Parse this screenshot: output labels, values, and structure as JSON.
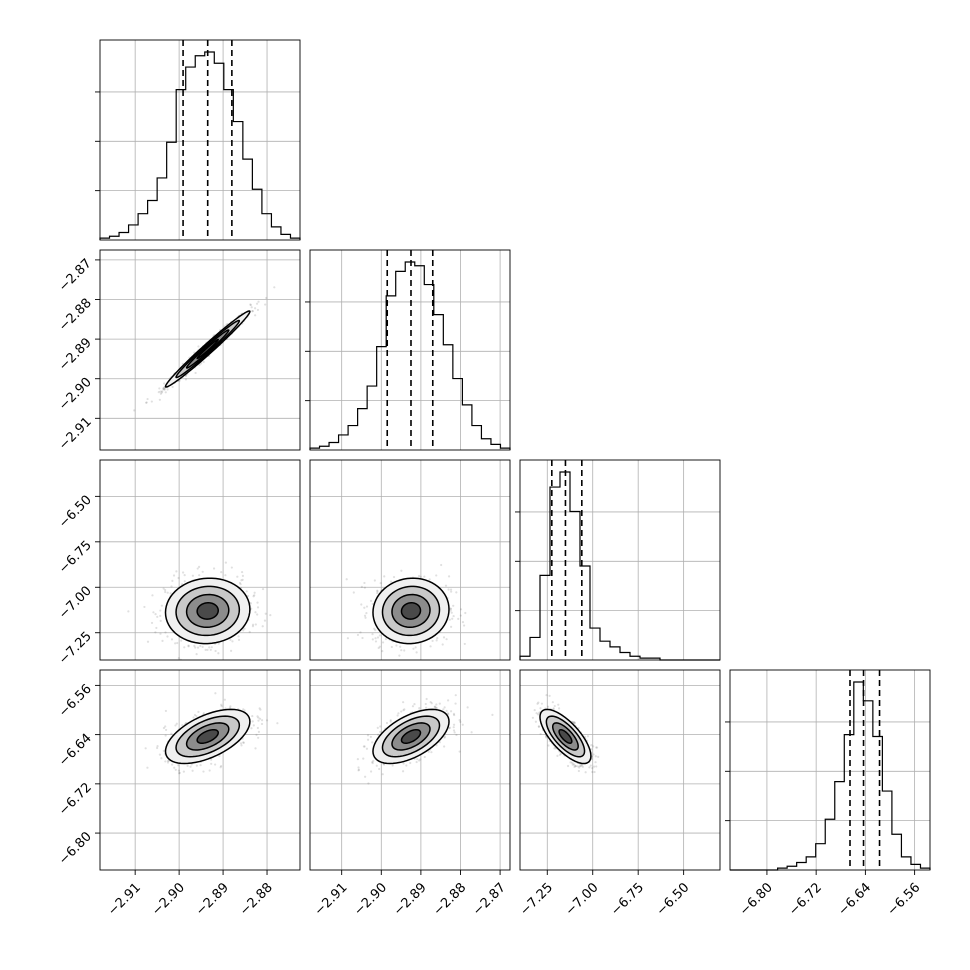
{
  "chart_data": {
    "type": "corner",
    "grid": true,
    "parameters": [
      {
        "range": [
          -2.918,
          -2.8725
        ],
        "ticks": [
          -2.91,
          -2.9,
          -2.89,
          -2.88
        ],
        "tick_labels": [
          "−2.91",
          "−2.90",
          "−2.89",
          "−2.88"
        ]
      },
      {
        "range": [
          -2.918,
          -2.8675
        ],
        "ticks": [
          -2.91,
          -2.9,
          -2.89,
          -2.88,
          -2.87
        ],
        "tick_labels": [
          "−2.91",
          "−2.90",
          "−2.89",
          "−2.88",
          "−2.87"
        ]
      },
      {
        "range": [
          -7.4,
          -6.3
        ],
        "ticks": [
          -7.25,
          -7.0,
          -6.75,
          -6.5
        ],
        "tick_labels": [
          "−7.25",
          "−7.00",
          "−6.75",
          "−6.50"
        ]
      },
      {
        "range": [
          -6.86,
          -6.535
        ],
        "ticks": [
          -6.8,
          -6.72,
          -6.64,
          -6.56
        ],
        "tick_labels": [
          "−6.80",
          "−6.72",
          "−6.64",
          "−6.56"
        ]
      }
    ],
    "histograms": [
      {
        "bins_lo": -2.918,
        "bins_hi": -2.8725,
        "counts": [
          1,
          2,
          4,
          8,
          14,
          21,
          33,
          52,
          80,
          92,
          98,
          100,
          94,
          80,
          63,
          43,
          27,
          14,
          7,
          3,
          1
        ],
        "quantiles": [
          -2.8991,
          -2.8935,
          -2.888
        ]
      },
      {
        "bins_lo": -2.918,
        "bins_hi": -2.8675,
        "counts": [
          1,
          2,
          4,
          8,
          13,
          22,
          34,
          55,
          82,
          95,
          100,
          98,
          88,
          72,
          56,
          38,
          24,
          13,
          6,
          3,
          1
        ],
        "quantiles": [
          -2.8985,
          -2.8925,
          -2.887
        ]
      },
      {
        "bins_lo": -7.4,
        "bins_hi": -6.3,
        "counts": [
          2,
          12,
          45,
          92,
          100,
          79,
          50,
          17,
          10,
          7,
          4,
          2,
          1,
          1,
          0,
          0,
          0,
          0,
          0,
          0
        ],
        "quantiles": [
          -7.225,
          -7.15,
          -7.06
        ]
      },
      {
        "bins_lo": -6.86,
        "bins_hi": -6.535,
        "counts": [
          0,
          0,
          0,
          0,
          0,
          1,
          2,
          4,
          7,
          14,
          27,
          47,
          72,
          100,
          90,
          71,
          42,
          19,
          7,
          3,
          1
        ],
        "quantiles": [
          -6.665,
          -6.643,
          -6.617
        ]
      }
    ],
    "pairs": [
      {
        "row": 1,
        "col": 0,
        "center": [
          -2.8935,
          -2.8925
        ],
        "std": [
          0.0048,
          0.0048
        ],
        "rho": 0.985
      },
      {
        "row": 2,
        "col": 0,
        "center": [
          -2.8935,
          -7.13
        ],
        "std": [
          0.0048,
          0.09
        ],
        "rho": 0.05
      },
      {
        "row": 2,
        "col": 1,
        "center": [
          -2.8925,
          -7.13
        ],
        "std": [
          0.0048,
          0.09
        ],
        "rho": 0.05
      },
      {
        "row": 3,
        "col": 0,
        "center": [
          -2.8935,
          -6.643
        ],
        "std": [
          0.0048,
          0.022
        ],
        "rho": 0.55
      },
      {
        "row": 3,
        "col": 1,
        "center": [
          -2.8925,
          -6.643
        ],
        "std": [
          0.0048,
          0.022
        ],
        "rho": 0.55
      },
      {
        "row": 3,
        "col": 2,
        "center": [
          -7.15,
          -6.643
        ],
        "std": [
          0.07,
          0.022
        ],
        "rho": -0.72
      }
    ],
    "contour_levels": [
      0.5,
      1.0,
      1.5,
      2.0
    ]
  }
}
